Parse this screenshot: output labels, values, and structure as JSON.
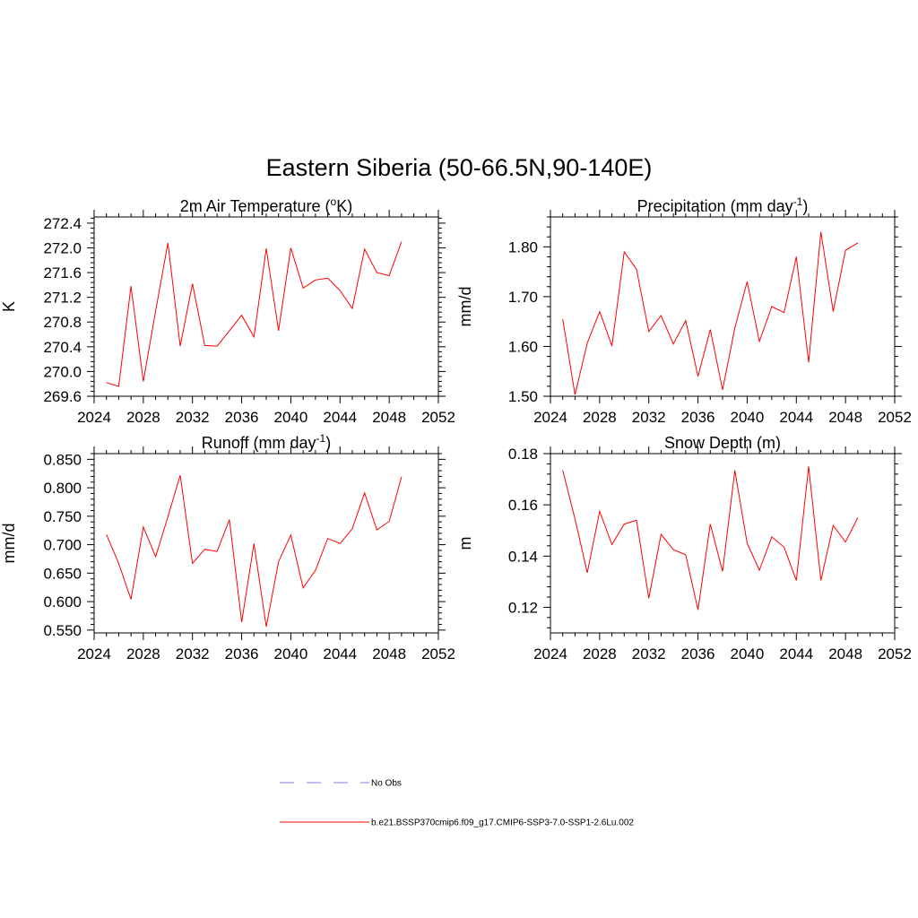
{
  "title": "Eastern Siberia (50-66.5N,90-140E)",
  "colors": {
    "series": "#ff0000",
    "no_obs": "#9999dd",
    "axis": "#000000"
  },
  "legend": {
    "no_obs_label": "No Obs",
    "series_label": "b.e21.BSSP370cmip6.f09_g17.CMIP6-SSP3-7.0-SSP1-2.6Lu.002"
  },
  "chart_data": [
    {
      "type": "line",
      "title_main": "2m Air Temperature (",
      "title_sup": "o",
      "title_tail": "K)",
      "ylabel": "K",
      "xlim": [
        2024,
        2052
      ],
      "ylim": [
        269.6,
        272.5
      ],
      "xticks": [
        2024,
        2028,
        2032,
        2036,
        2040,
        2044,
        2048,
        2052
      ],
      "yticks": [
        269.6,
        270.0,
        270.4,
        270.8,
        271.2,
        271.6,
        272.0,
        272.4
      ],
      "ytick_decimals": 1,
      "series": [
        {
          "x": [
            2025,
            2026,
            2027,
            2028,
            2029,
            2030,
            2031,
            2032,
            2033,
            2034,
            2035,
            2036,
            2037,
            2038,
            2039,
            2040,
            2041,
            2042,
            2043,
            2044,
            2045,
            2046,
            2047,
            2048,
            2049
          ],
          "values": [
            269.82,
            269.76,
            271.38,
            269.84,
            270.98,
            272.08,
            270.41,
            271.42,
            270.42,
            270.41,
            270.66,
            270.91,
            270.56,
            271.99,
            270.66,
            272.0,
            271.35,
            271.48,
            271.51,
            271.31,
            271.02,
            271.98,
            271.6,
            271.55,
            272.1
          ]
        }
      ]
    },
    {
      "type": "line",
      "title_main": "Precipitation (mm day",
      "title_sup": "-1",
      "title_tail": ")",
      "ylabel": "mm/d",
      "xlim": [
        2024,
        2052
      ],
      "ylim": [
        1.5,
        1.86
      ],
      "xticks": [
        2024,
        2028,
        2032,
        2036,
        2040,
        2044,
        2048,
        2052
      ],
      "yticks": [
        1.5,
        1.6,
        1.7,
        1.8
      ],
      "ytick_decimals": 2,
      "series": [
        {
          "x": [
            2025,
            2026,
            2027,
            2028,
            2029,
            2030,
            2031,
            2032,
            2033,
            2034,
            2035,
            2036,
            2037,
            2038,
            2039,
            2040,
            2041,
            2042,
            2043,
            2044,
            2045,
            2046,
            2047,
            2048,
            2049
          ],
          "values": [
            1.655,
            1.503,
            1.607,
            1.67,
            1.601,
            1.79,
            1.755,
            1.63,
            1.662,
            1.605,
            1.652,
            1.54,
            1.634,
            1.513,
            1.637,
            1.73,
            1.61,
            1.68,
            1.668,
            1.78,
            1.568,
            1.83,
            1.67,
            1.793,
            1.808
          ]
        }
      ]
    },
    {
      "type": "line",
      "title_main": "Runoff (mm day",
      "title_sup": "-1",
      "title_tail": ")",
      "ylabel": "mm/d",
      "xlim": [
        2024,
        2052
      ],
      "ylim": [
        0.545,
        0.86
      ],
      "xticks": [
        2024,
        2028,
        2032,
        2036,
        2040,
        2044,
        2048,
        2052
      ],
      "yticks": [
        0.55,
        0.6,
        0.65,
        0.7,
        0.75,
        0.8,
        0.85
      ],
      "ytick_decimals": 3,
      "series": [
        {
          "x": [
            2025,
            2026,
            2027,
            2028,
            2029,
            2030,
            2031,
            2032,
            2033,
            2034,
            2035,
            2036,
            2037,
            2038,
            2039,
            2040,
            2041,
            2042,
            2043,
            2044,
            2045,
            2046,
            2047,
            2048,
            2049
          ],
          "values": [
            0.718,
            0.667,
            0.604,
            0.731,
            0.679,
            0.749,
            0.822,
            0.667,
            0.692,
            0.688,
            0.744,
            0.564,
            0.702,
            0.556,
            0.67,
            0.717,
            0.624,
            0.655,
            0.711,
            0.702,
            0.728,
            0.791,
            0.726,
            0.741,
            0.819
          ]
        }
      ]
    },
    {
      "type": "line",
      "title_main": "Snow Depth (m)",
      "title_sup": "",
      "title_tail": "",
      "ylabel": "m",
      "xlim": [
        2024,
        2052
      ],
      "ylim": [
        0.11,
        0.18
      ],
      "xticks": [
        2024,
        2028,
        2032,
        2036,
        2040,
        2044,
        2048,
        2052
      ],
      "yticks": [
        0.12,
        0.14,
        0.16,
        0.18
      ],
      "ytick_decimals": 2,
      "series": [
        {
          "x": [
            2025,
            2026,
            2027,
            2028,
            2029,
            2030,
            2031,
            2032,
            2033,
            2034,
            2035,
            2036,
            2037,
            2038,
            2039,
            2040,
            2041,
            2042,
            2043,
            2044,
            2045,
            2046,
            2047,
            2048,
            2049
          ],
          "values": [
            0.1735,
            0.1545,
            0.1335,
            0.1575,
            0.1445,
            0.1525,
            0.154,
            0.1235,
            0.1485,
            0.1425,
            0.1405,
            0.119,
            0.1525,
            0.134,
            0.1735,
            0.145,
            0.1345,
            0.1475,
            0.1435,
            0.1305,
            0.175,
            0.1305,
            0.152,
            0.1455,
            0.155
          ]
        }
      ]
    }
  ]
}
